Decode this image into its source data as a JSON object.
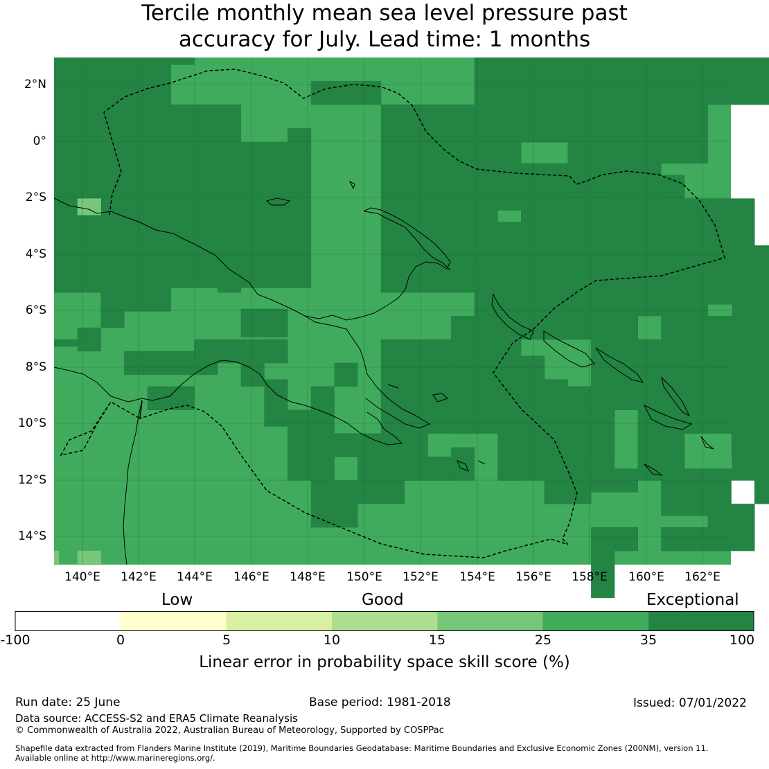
{
  "title": {
    "line1": "Tercile monthly mean sea level pressure past",
    "line2": "accuracy for July. Lead time: 1 months"
  },
  "map": {
    "lat_ticks": [
      "2°N",
      "0°",
      "2°S",
      "4°S",
      "6°S",
      "8°S",
      "10°S",
      "12°S",
      "14°S"
    ],
    "lon_ticks": [
      "140°E",
      "142°E",
      "144°E",
      "146°E",
      "148°E",
      "150°E",
      "152°E",
      "154°E",
      "156°E",
      "158°E",
      "160°E",
      "162°E"
    ],
    "extent": {
      "lon_min": 139,
      "lon_max": 163,
      "lat_min": -15,
      "lat_max": 3
    },
    "colors": {
      "exceptional": "#238443",
      "good_high": "#41ab5d",
      "good_mid": "#78c679"
    }
  },
  "colorbar": {
    "categories": {
      "low": "Low",
      "good": "Good",
      "exceptional": "Exceptional"
    },
    "ticks": [
      "-100",
      "0",
      "5",
      "10",
      "15",
      "25",
      "35",
      "100"
    ],
    "colors": [
      "#ffffff",
      "#ffffcc",
      "#d9f0a3",
      "#addd8e",
      "#78c679",
      "#41ab5d",
      "#238443"
    ],
    "label": "Linear error in probability space skill score (%)"
  },
  "footer": {
    "run_date": "Run date: 25 June",
    "base_period": "Base period: 1981-2018",
    "issued": "Issued: 07/01/2022",
    "data_source": "Data source: ACCESS-S2 and ERA5 Climate Reanalysis",
    "copyright": "© Commonwealth of Australia 2022, Australian Bureau of Meteorology, Supported by COSPPac",
    "shapefile_line1": "Shapefile data extracted from Flanders Marine Institute (2019), Maritime Boundaries Geodatabase: Maritime Boundaries and Exclusive Economic Zones (200NM), version 11.",
    "shapefile_line2": "Available online at http://www.marineregions.org/."
  }
}
